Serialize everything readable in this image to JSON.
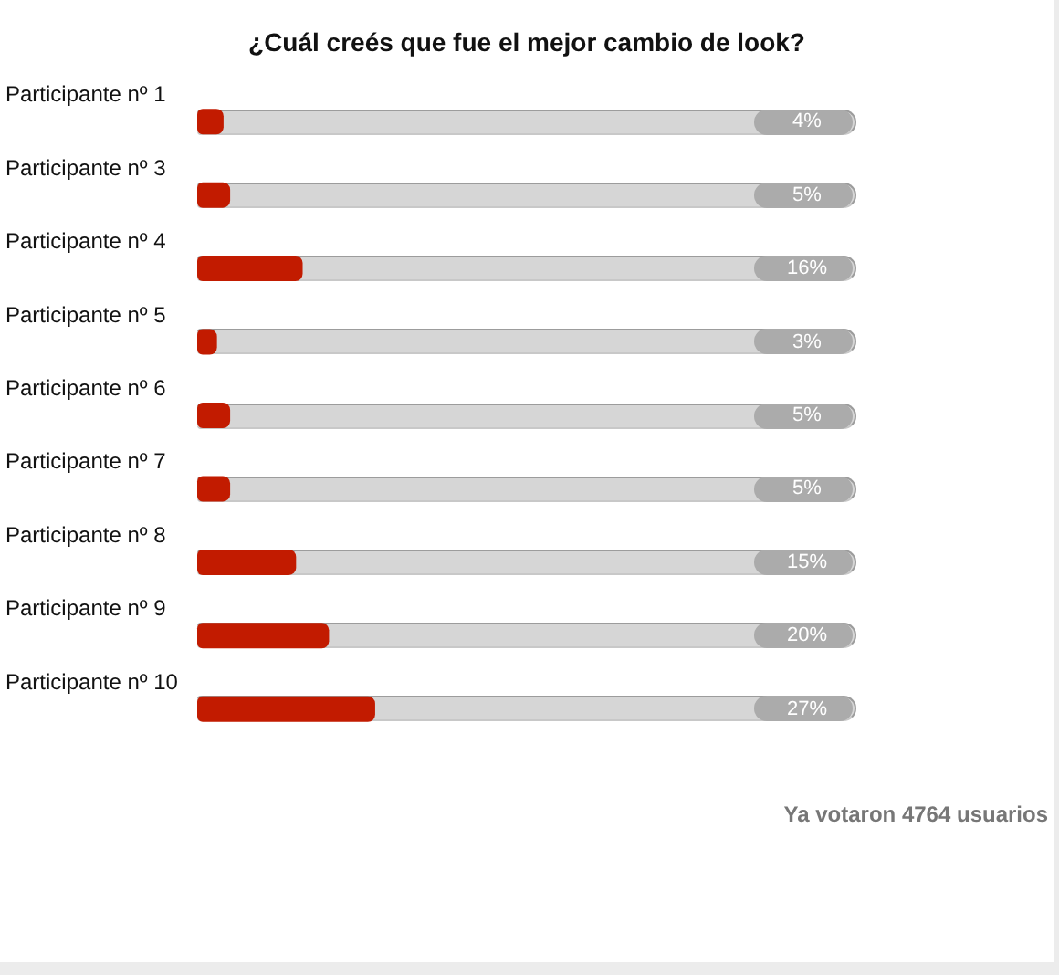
{
  "chart_data": {
    "type": "bar",
    "orientation": "horizontal",
    "title": "¿Cuál creés que fue el mejor cambio de look?",
    "categories": [
      "Participante nº 1",
      "Participante nº 3",
      "Participante nº 4",
      "Participante nº 5",
      "Participante nº 6",
      "Participante nº 7",
      "Participante nº 8",
      "Participante nº 9",
      "Participante nº 10"
    ],
    "values": [
      4,
      5,
      16,
      3,
      5,
      5,
      15,
      20,
      27
    ],
    "value_labels": [
      "4%",
      "5%",
      "16%",
      "3%",
      "5%",
      "5%",
      "15%",
      "20%",
      "27%"
    ],
    "color": "#c21b00",
    "xlim": [
      0,
      100
    ],
    "tick_labels": "y",
    "annotations": [
      "Ya votaron 4764 usuarios"
    ]
  }
}
